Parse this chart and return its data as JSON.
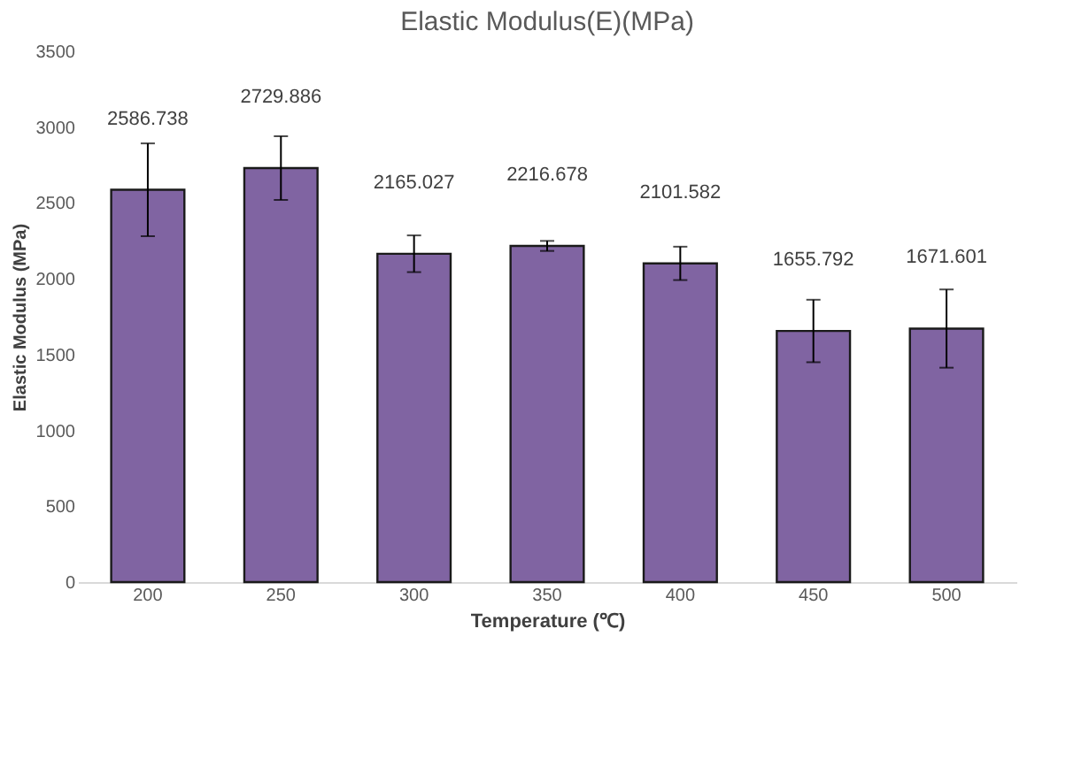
{
  "chart_data": {
    "type": "bar",
    "title": "Elastic Modulus(E)(MPa)",
    "xlabel": "Temperature (℃)",
    "ylabel": "Elastic Modulus (MPa)",
    "categories": [
      "200",
      "250",
      "300",
      "350",
      "400",
      "450",
      "500"
    ],
    "values": [
      2586.738,
      2729.886,
      2165.027,
      2216.678,
      2101.582,
      1655.792,
      1671.601
    ],
    "errors": [
      306,
      210,
      121,
      33,
      110,
      206,
      258
    ],
    "color": "#8064a2",
    "ylim": [
      0,
      3500
    ],
    "yticks": [
      0,
      500,
      1000,
      1500,
      2000,
      2500,
      3000,
      3500
    ],
    "grid": false,
    "data_labels": true
  }
}
